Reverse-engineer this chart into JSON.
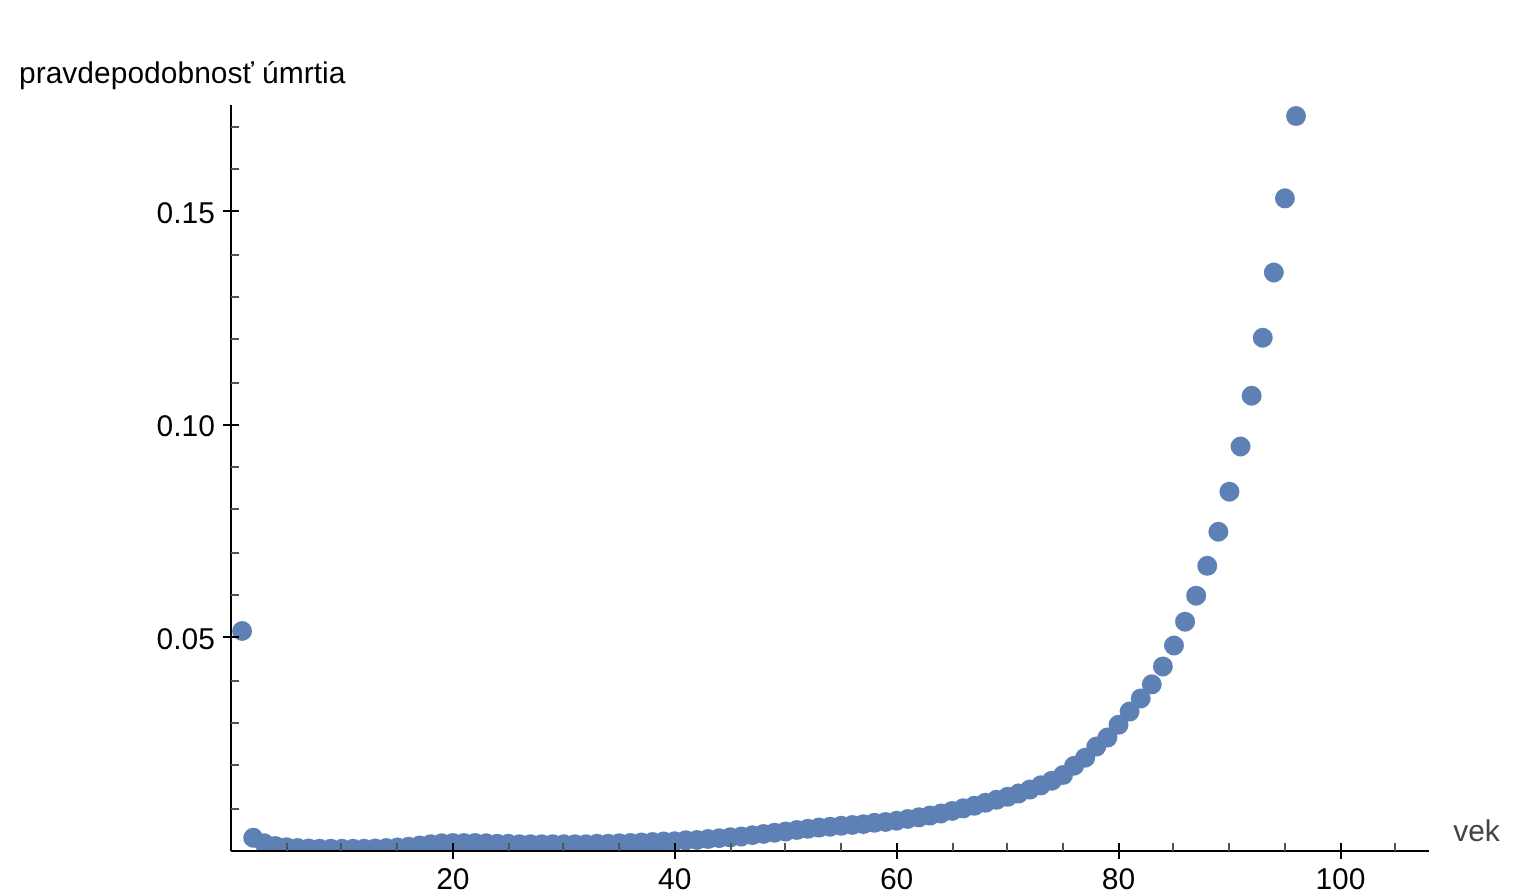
{
  "chart_data": {
    "type": "scatter",
    "ylabel": "pravdepodobnosť úmrtia",
    "xlabel": "vek",
    "xlim": [
      0,
      108
    ],
    "ylim": [
      0,
      0.175
    ],
    "xticks": [
      {
        "value": 5,
        "label": null
      },
      {
        "value": 10,
        "label": null
      },
      {
        "value": 15,
        "label": null
      },
      20,
      {
        "value": 25,
        "label": null
      },
      {
        "value": 30,
        "label": null
      },
      {
        "value": 35,
        "label": null
      },
      40,
      {
        "value": 45,
        "label": null
      },
      {
        "value": 50,
        "label": null
      },
      {
        "value": 55,
        "label": null
      },
      60,
      {
        "value": 65,
        "label": null
      },
      {
        "value": 70,
        "label": null
      },
      {
        "value": 75,
        "label": null
      },
      80,
      {
        "value": 85,
        "label": null
      },
      {
        "value": 90,
        "label": null
      },
      {
        "value": 95,
        "label": null
      },
      100,
      {
        "value": 105,
        "label": null
      }
    ],
    "yticks": [
      {
        "value": 0.01,
        "label": null
      },
      {
        "value": 0.02,
        "label": null
      },
      {
        "value": 0.03,
        "label": null
      },
      {
        "value": 0.04,
        "label": null
      },
      0.05,
      {
        "value": 0.06,
        "label": null
      },
      {
        "value": 0.07,
        "label": null
      },
      {
        "value": 0.08,
        "label": null
      },
      {
        "value": 0.09,
        "label": null
      },
      {
        "value": 0.1,
        "label": "0.10"
      },
      {
        "value": 0.11,
        "label": null
      },
      {
        "value": 0.12,
        "label": null
      },
      {
        "value": 0.13,
        "label": null
      },
      {
        "value": 0.14,
        "label": null
      },
      0.15,
      {
        "value": 0.16,
        "label": null
      },
      {
        "value": 0.17,
        "label": null
      }
    ],
    "grid": false,
    "marker": "circle",
    "x": [
      1,
      2,
      3,
      4,
      5,
      6,
      7,
      8,
      9,
      10,
      11,
      12,
      13,
      14,
      15,
      16,
      17,
      18,
      19,
      20,
      21,
      22,
      23,
      24,
      25,
      26,
      27,
      28,
      29,
      30,
      31,
      32,
      33,
      34,
      35,
      36,
      37,
      38,
      39,
      40,
      41,
      42,
      43,
      44,
      45,
      46,
      47,
      48,
      49,
      50,
      51,
      52,
      53,
      54,
      55,
      56,
      57,
      58,
      59,
      60,
      61,
      62,
      63,
      64,
      65,
      66,
      67,
      68,
      69,
      70,
      71,
      72,
      73,
      74,
      75,
      76,
      77,
      78,
      79,
      80,
      81,
      82,
      83,
      84,
      85,
      86,
      87,
      88,
      89,
      90,
      91,
      92,
      93,
      94,
      95,
      96
    ],
    "series": [
      {
        "color": "#5e81b5",
        "values": [
          0.0516,
          0.0031,
          0.0018,
          0.0012,
          0.0009,
          0.0007,
          0.0006,
          0.0005,
          0.0005,
          0.0005,
          0.0005,
          0.0005,
          0.0006,
          0.0007,
          0.0008,
          0.001,
          0.0013,
          0.0016,
          0.0018,
          0.0019,
          0.0019,
          0.0019,
          0.0018,
          0.0017,
          0.0017,
          0.0016,
          0.0016,
          0.0016,
          0.0016,
          0.0016,
          0.0016,
          0.0016,
          0.0017,
          0.0017,
          0.0018,
          0.0019,
          0.002,
          0.0021,
          0.0022,
          0.0023,
          0.0025,
          0.0026,
          0.0028,
          0.003,
          0.0032,
          0.0034,
          0.0037,
          0.004,
          0.0043,
          0.0046,
          0.0049,
          0.0052,
          0.0055,
          0.0057,
          0.0059,
          0.0061,
          0.0063,
          0.0066,
          0.0068,
          0.0071,
          0.0075,
          0.0079,
          0.0083,
          0.0088,
          0.0094,
          0.01,
          0.0106,
          0.0113,
          0.012,
          0.0127,
          0.0135,
          0.0144,
          0.0154,
          0.0165,
          0.0178,
          0.02,
          0.0219,
          0.0245,
          0.0266,
          0.0296,
          0.0327,
          0.0358,
          0.0391,
          0.0433,
          0.0482,
          0.0538,
          0.0599,
          0.0669,
          0.0749,
          0.0843,
          0.0949,
          0.1068,
          0.1204,
          0.1357,
          0.1531,
          0.1724
        ]
      }
    ]
  }
}
